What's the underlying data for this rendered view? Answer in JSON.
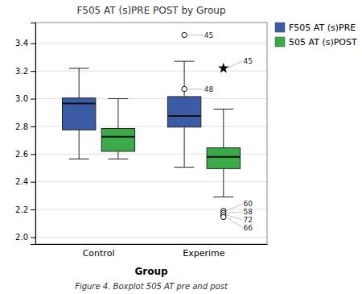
{
  "chart_data": {
    "type": "box",
    "title": "F505 AT (s)PRE POST by Group",
    "xlabel": "Group",
    "caption": "Figure 4. Boxplot 505 AT pre and post",
    "categories": [
      "Control",
      "Experime"
    ],
    "ylim": [
      1.95,
      3.55
    ],
    "yticks": [
      {
        "value": 2.0,
        "label": "2.0"
      },
      2.2,
      2.4,
      2.6,
      2.8,
      {
        "value": 3.0,
        "label": "3.0"
      },
      3.2,
      3.4
    ],
    "grid": true,
    "legend": "upper right",
    "series": [
      {
        "name": "F505 AT (s)PRE",
        "color": "#3B5BA5",
        "q1": [
          2.775,
          2.795
        ],
        "median": [
          2.965,
          2.875
        ],
        "q3": [
          3.005,
          3.015
        ],
        "whisker_low": [
          2.565,
          2.505
        ],
        "whisker_high": [
          3.22,
          3.27
        ],
        "outliers": [
          [],
          [
            3.46,
            3.07
          ]
        ],
        "outlier_labels": [
          [],
          [
            "45",
            "48"
          ]
        ],
        "star_outliers": [
          [],
          []
        ],
        "star_labels": [
          [],
          []
        ]
      },
      {
        "name": "505 AT (s)POST",
        "color": "#3DAA4A",
        "q1": [
          2.62,
          2.495
        ],
        "median": [
          2.725,
          2.58
        ],
        "q3": [
          2.785,
          2.645
        ],
        "whisker_low": [
          2.565,
          2.29
        ],
        "whisker_high": [
          3.0,
          2.925
        ],
        "outliers": [
          [],
          [
            2.19,
            2.175,
            2.16,
            2.145
          ]
        ],
        "outlier_labels": [
          [],
          [
            "60",
            "58",
            "72",
            "66"
          ]
        ],
        "star_outliers": [
          [],
          [
            3.22
          ]
        ],
        "star_labels": [
          [],
          [
            "45"
          ]
        ]
      }
    ]
  }
}
